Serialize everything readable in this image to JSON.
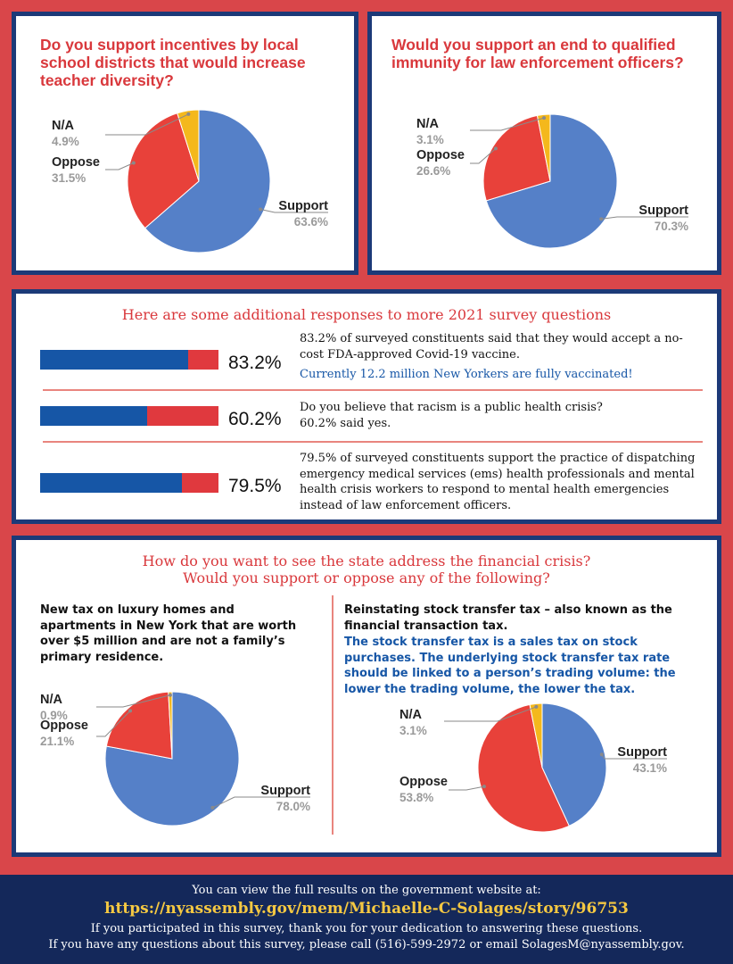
{
  "colors": {
    "support": "#5580c8",
    "oppose": "#e8413a",
    "na": "#f4b81c",
    "navy": "#1c3a78",
    "red": "#d9464a"
  },
  "panel1": {
    "question": "Do you support incentives by local school districts that would increase teacher diversity?",
    "chart_data": {
      "type": "pie",
      "title": "Do you support incentives by local school districts that would increase teacher diversity?",
      "labels": [
        "Support",
        "Oppose",
        "N/A"
      ],
      "values": [
        63.6,
        31.5,
        4.9
      ],
      "value_labels": [
        "63.6%",
        "31.5%",
        "4.9%"
      ]
    }
  },
  "panel2": {
    "question": "Would you support an end to qualified immunity for law enforcement officers?",
    "chart_data": {
      "type": "pie",
      "title": "Would you support an end to qualified immunity for law enforcement officers?",
      "labels": [
        "Support",
        "Oppose",
        "N/A"
      ],
      "values": [
        70.3,
        26.6,
        3.1
      ],
      "value_labels": [
        "70.3%",
        "26.6%",
        "3.1%"
      ]
    }
  },
  "panel3": {
    "heading": "Here are some additional responses to more 2021 survey questions",
    "rows": [
      {
        "pct_label": "83.2%",
        "value": 83.2,
        "text1": "83.2% of surveyed constituents said that they would accept a no-cost FDA-approved Covid-19 vaccine.",
        "text2": "Currently 12.2 million New Yorkers are fully vaccinated!"
      },
      {
        "pct_label": "60.2%",
        "value": 60.2,
        "text1": "Do you believe that racism is a public health crisis?",
        "text2": "60.2% said yes."
      },
      {
        "pct_label": "79.5%",
        "value": 79.5,
        "text1": "79.5% of surveyed constituents support the practice of dispatching emergency medical services (ems) health professionals and mental health crisis workers to respond to mental health emergencies instead of law enforcement officers."
      }
    ]
  },
  "panel4": {
    "heading1": "How do you want to see the state address the financial crisis?",
    "heading2": "Would you support or oppose any of the following?",
    "left": {
      "text": "New tax on luxury homes and apartments in New York that are worth over $5 million and are not a family’s primary residence.",
      "chart_data": {
        "type": "pie",
        "labels": [
          "Support",
          "Oppose",
          "N/A"
        ],
        "values": [
          78.0,
          21.1,
          0.9
        ],
        "value_labels": [
          "78.0%",
          "21.1%",
          "0.9%"
        ]
      }
    },
    "right": {
      "text": "Reinstating stock transfer tax – also known as the financial transaction tax.",
      "note": "The stock transfer tax is a sales tax on stock purchases. The underlying stock transfer tax rate should be linked to a person’s trading volume: the lower the trading volume, the lower the tax.",
      "chart_data": {
        "type": "pie",
        "labels": [
          "Support",
          "Oppose",
          "N/A"
        ],
        "values": [
          43.1,
          53.8,
          3.1
        ],
        "value_labels": [
          "43.1%",
          "53.8%",
          "3.1%"
        ]
      }
    }
  },
  "footer": {
    "line1": "You can view the full results on the government website at:",
    "url": "https://nyassembly.gov/mem/Michaelle-C-Solages/story/96753",
    "line3": "If you participated in this survey, thank you for your dedication to answering these questions.",
    "line4": "If you have any questions about this survey, please call (516)-599-2972 or email SolagesM@nyassembly.gov."
  }
}
